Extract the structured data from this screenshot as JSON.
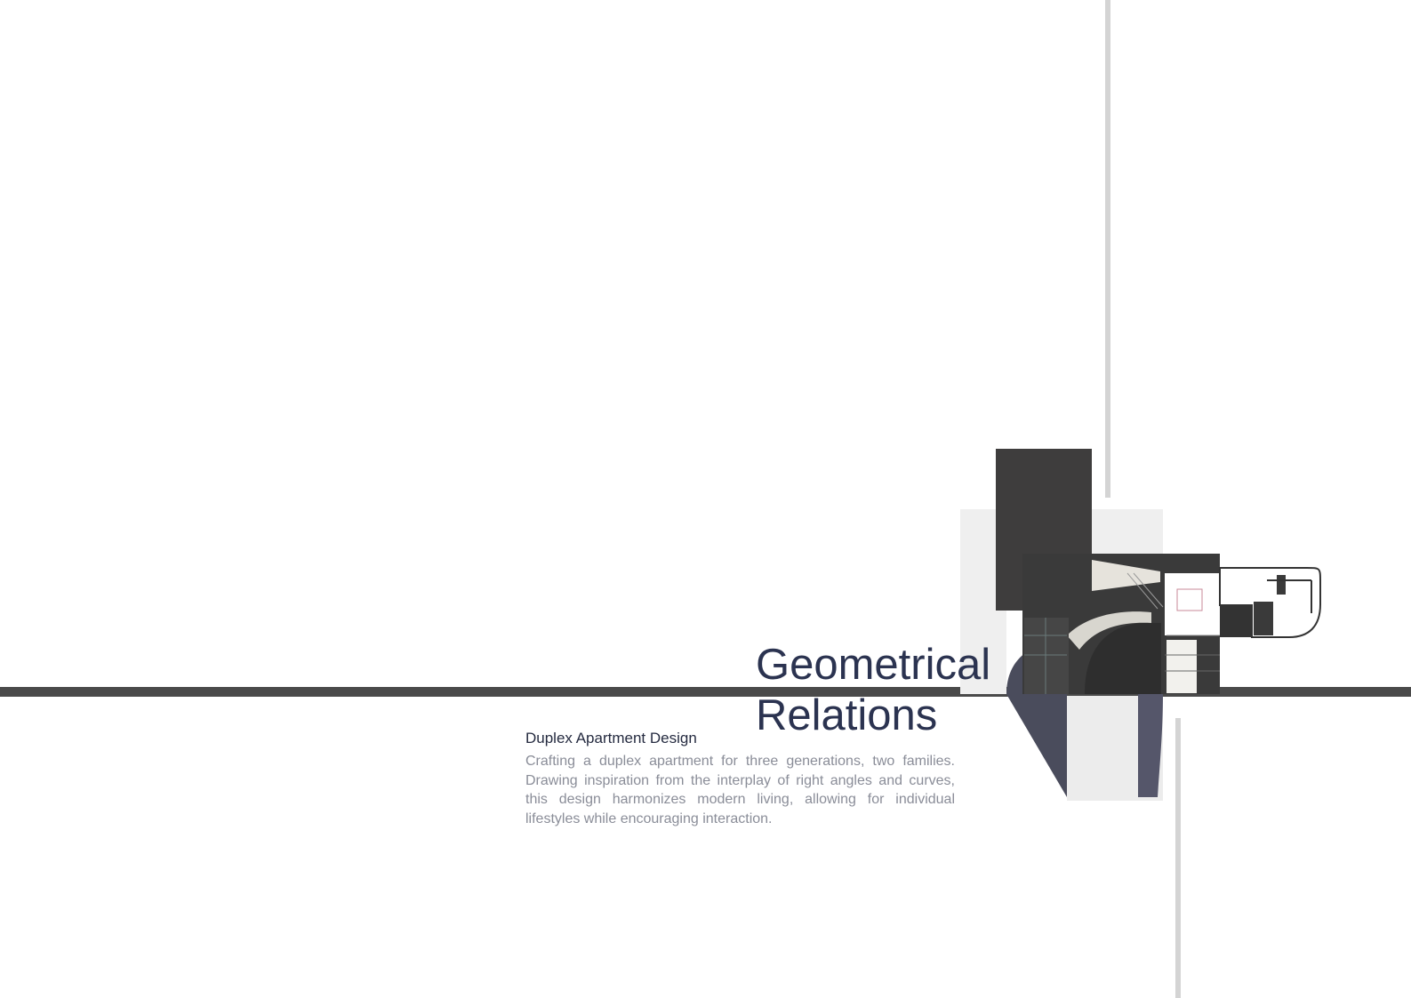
{
  "title": {
    "line1": "Geometrical",
    "line2": "Relations"
  },
  "subtitle": "Duplex Apartment Design",
  "description": "Crafting a duplex apartment for three generations, two families. Drawing inspiration from the interplay of right angles and curves, this design harmonizes modern living, allowing for individual lifestyles while encouraging interaction.",
  "colors": {
    "background": "#ffffff",
    "title": "#2b3350",
    "subtitle": "#252b40",
    "body_text": "#8a8d98",
    "horizontal_bar": "#4a4a4a",
    "vertical_lines": "#d4d4d4",
    "dark_block": "#3e3d3d",
    "slate_shape": "#4a4c5c",
    "light_panel": "#eeeeee"
  },
  "icons": {
    "artwork": "floor-plan-collage"
  }
}
